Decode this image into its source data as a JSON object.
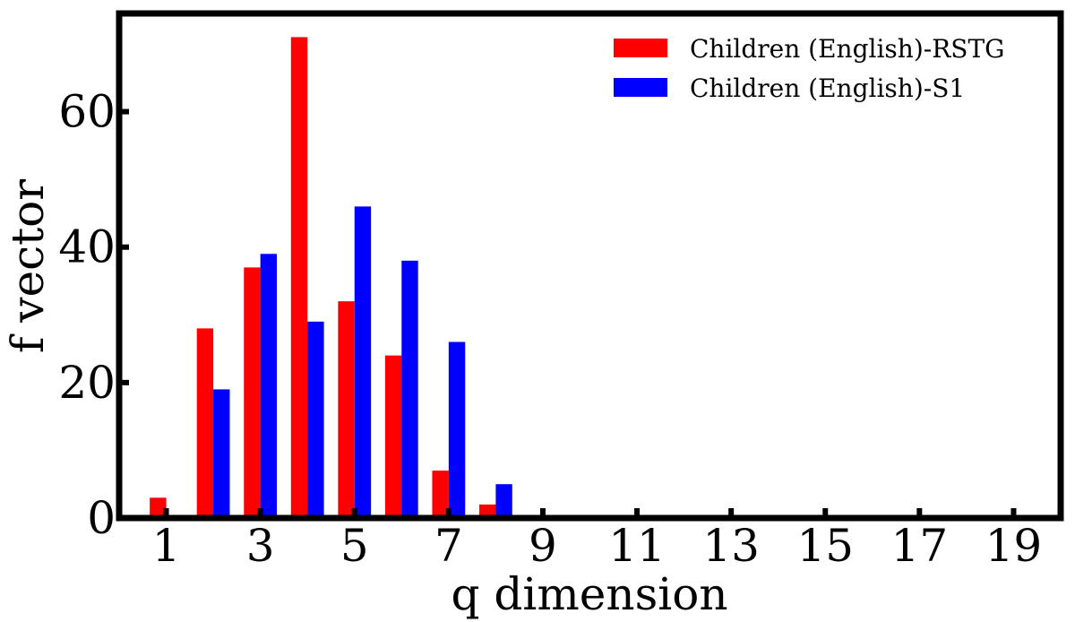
{
  "chart_data": {
    "type": "bar",
    "xlabel": "q dimension",
    "ylabel": "f vector",
    "xlim": [
      0,
      20
    ],
    "ylim": [
      0,
      74.5
    ],
    "x_ticks": [
      1,
      3,
      5,
      7,
      9,
      11,
      13,
      15,
      17,
      19
    ],
    "y_ticks": [
      0,
      20,
      40,
      60
    ],
    "x": [
      1,
      2,
      3,
      4,
      5,
      6,
      7,
      8,
      9,
      10,
      11,
      12,
      13,
      14,
      15,
      16,
      17,
      18,
      19
    ],
    "series": [
      {
        "name": "Children (English)-RSTG",
        "color": "#ff0000",
        "values": [
          3,
          28,
          37,
          71,
          32,
          24,
          7,
          2,
          0,
          0,
          0,
          0,
          0,
          0,
          0,
          0,
          0,
          0,
          0
        ]
      },
      {
        "name": "Children (English)-S1",
        "color": "#0000ff",
        "values": [
          0,
          19,
          39,
          29,
          46,
          38,
          26,
          5,
          0,
          0,
          0,
          0,
          0,
          0,
          0,
          0,
          0,
          0,
          0
        ]
      }
    ],
    "legend_position": "top-right",
    "grid": false
  }
}
